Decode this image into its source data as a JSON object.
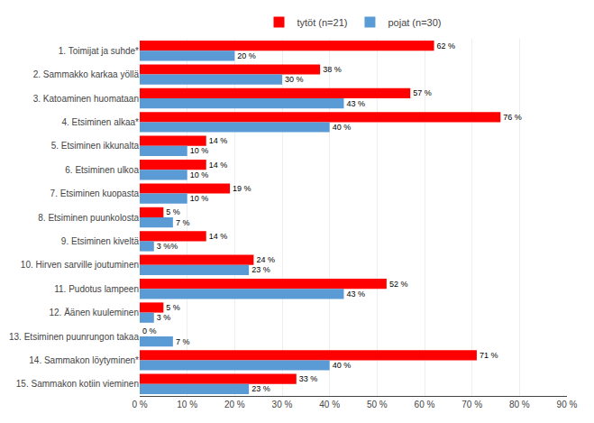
{
  "chart_data": {
    "type": "bar",
    "orientation": "horizontal",
    "categories": [
      "1. Toimijat ja suhde*",
      "2. Sammakko karkaa yöllä",
      "3. Katoaminen huomataan",
      "4. Etsiminen alkaa*",
      "5. Etsiminen ikkunalta",
      "6. Etsiminen ulkoa",
      "7. Etsiminen kuopasta",
      "8. Etsiminen puunkolosta",
      "9. Etsiminen kiveltä",
      "10. Hirven sarville joutuminen",
      "11. Pudotus lampeen",
      "12. Äänen kuuleminen",
      "13. Etsiminen puunrungon takaa",
      "14. Sammakon löytyminen*",
      "15. Sammakon kotiin vieminen"
    ],
    "series": [
      {
        "name": "tytöt (n=21)",
        "color": "#FF0000",
        "values": [
          62,
          38,
          57,
          76,
          14,
          14,
          19,
          5,
          14,
          24,
          52,
          5,
          0,
          71,
          33
        ],
        "value_labels": [
          "62 %",
          "38 %",
          "57 %",
          "76 %",
          "14 %",
          "14 %",
          "19 %",
          "5 %",
          "14 %",
          "24 %",
          "52 %",
          "5 %",
          "0 %",
          "71 %",
          "33 %"
        ]
      },
      {
        "name": "pojat (n=30)",
        "color": "#5B9BD5",
        "values": [
          20,
          30,
          43,
          40,
          10,
          10,
          10,
          7,
          3,
          23,
          43,
          3,
          7,
          40,
          23
        ],
        "value_labels": [
          "20 %",
          "30 %",
          "43 %",
          "40 %",
          "10 %",
          "10 %",
          "10 %",
          "7 %",
          "3 %%",
          "23 %",
          "43 %",
          "3 %",
          "7 %",
          "40 %",
          "23 %"
        ]
      }
    ],
    "xlim": [
      0,
      90
    ],
    "xticks": [
      {
        "value": 0,
        "label": "0 %"
      },
      {
        "value": 10,
        "label": "10 %"
      },
      {
        "value": 20,
        "label": "20 %"
      },
      {
        "value": 30,
        "label": "30 %"
      },
      {
        "value": 40,
        "label": "40 %"
      },
      {
        "value": 50,
        "label": "50 %"
      },
      {
        "value": 60,
        "label": "60 %"
      },
      {
        "value": 70,
        "label": "70 %"
      },
      {
        "value": 80,
        "label": "80 %"
      },
      {
        "value": 90,
        "label": "90 %"
      }
    ],
    "grid": true,
    "legend": "top",
    "data_labels": true
  }
}
